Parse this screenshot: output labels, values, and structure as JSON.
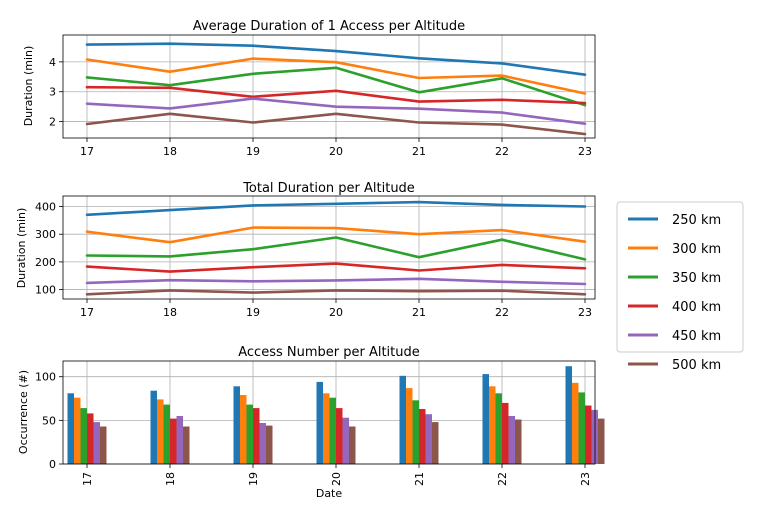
{
  "chart_data": [
    {
      "type": "line",
      "title": "Average Duration of 1 Access per Altitude",
      "xlabel": "",
      "ylabel": "Duration (min)",
      "x": [
        17,
        18,
        19,
        20,
        21,
        22,
        23
      ],
      "xticks": [
        "17",
        "18",
        "19",
        "20",
        "21",
        "22",
        "23"
      ],
      "yticks": [
        2,
        3,
        4
      ],
      "ylim": [
        1.45,
        4.9
      ],
      "grid": true,
      "series": [
        {
          "name": "250 km",
          "color": "#1f77b4",
          "values": [
            4.58,
            4.61,
            4.54,
            4.36,
            4.12,
            3.95,
            3.57
          ]
        },
        {
          "name": "300 km",
          "color": "#ff7f0e",
          "values": [
            4.08,
            3.67,
            4.11,
            3.99,
            3.46,
            3.54,
            2.94
          ]
        },
        {
          "name": "350 km",
          "color": "#2ca02c",
          "values": [
            3.48,
            3.22,
            3.6,
            3.8,
            2.98,
            3.45,
            2.55
          ]
        },
        {
          "name": "400 km",
          "color": "#d62728",
          "values": [
            3.15,
            3.13,
            2.83,
            3.03,
            2.67,
            2.73,
            2.62
          ]
        },
        {
          "name": "450 km",
          "color": "#9467bd",
          "values": [
            2.6,
            2.44,
            2.77,
            2.5,
            2.43,
            2.3,
            1.93
          ]
        },
        {
          "name": "500 km",
          "color": "#8c564b",
          "values": [
            1.92,
            2.26,
            1.97,
            2.26,
            1.97,
            1.9,
            1.58
          ]
        }
      ]
    },
    {
      "type": "line",
      "title": "Total Duration per Altitude",
      "xlabel": "",
      "ylabel": "Duration (min)",
      "x": [
        17,
        18,
        19,
        20,
        21,
        22,
        23
      ],
      "xticks": [
        "17",
        "18",
        "19",
        "20",
        "21",
        "22",
        "23"
      ],
      "yticks": [
        100,
        200,
        300,
        400
      ],
      "ylim": [
        66,
        438
      ],
      "grid": true,
      "series": [
        {
          "name": "250 km",
          "color": "#1f77b4",
          "values": [
            370,
            387,
            404,
            410,
            416,
            406,
            400
          ]
        },
        {
          "name": "300 km",
          "color": "#ff7f0e",
          "values": [
            309,
            271,
            324,
            322,
            300,
            315,
            273
          ]
        },
        {
          "name": "350 km",
          "color": "#2ca02c",
          "values": [
            223,
            220,
            246,
            288,
            217,
            280,
            209
          ]
        },
        {
          "name": "400 km",
          "color": "#d62728",
          "values": [
            183,
            165,
            181,
            194,
            169,
            189,
            177
          ]
        },
        {
          "name": "450 km",
          "color": "#9467bd",
          "values": [
            124,
            134,
            130,
            133,
            139,
            128,
            120
          ]
        },
        {
          "name": "500 km",
          "color": "#8c564b",
          "values": [
            83,
            97,
            89,
            97,
            94,
            96,
            83
          ]
        }
      ]
    },
    {
      "type": "bar",
      "title": "Access Number per Altitude",
      "xlabel": "Date",
      "ylabel": "Occurrence (#)",
      "categories": [
        "17",
        "18",
        "19",
        "20",
        "21",
        "22",
        "23"
      ],
      "yticks": [
        0,
        50,
        100
      ],
      "ylim": [
        0,
        118
      ],
      "grid": true,
      "series": [
        {
          "name": "250 km",
          "color": "#1f77b4",
          "values": [
            81,
            84,
            89,
            94,
            101,
            103,
            112
          ]
        },
        {
          "name": "300 km",
          "color": "#ff7f0e",
          "values": [
            76,
            74,
            79,
            81,
            87,
            89,
            93
          ]
        },
        {
          "name": "350 km",
          "color": "#2ca02c",
          "values": [
            64,
            68,
            68,
            76,
            73,
            81,
            82
          ]
        },
        {
          "name": "400 km",
          "color": "#d62728",
          "values": [
            58,
            52,
            64,
            64,
            63,
            70,
            67
          ]
        },
        {
          "name": "450 km",
          "color": "#9467bd",
          "values": [
            48,
            55,
            47,
            53,
            57,
            55,
            62
          ]
        },
        {
          "name": "500 km",
          "color": "#8c564b",
          "values": [
            43,
            43,
            44,
            43,
            48,
            51,
            52
          ]
        }
      ]
    }
  ],
  "legend": {
    "position": "right",
    "entries": [
      {
        "label": "250 km",
        "color": "#1f77b4"
      },
      {
        "label": "300 km",
        "color": "#ff7f0e"
      },
      {
        "label": "350 km",
        "color": "#2ca02c"
      },
      {
        "label": "400 km",
        "color": "#d62728"
      },
      {
        "label": "450 km",
        "color": "#9467bd"
      },
      {
        "label": "500 km",
        "color": "#8c564b"
      }
    ]
  }
}
